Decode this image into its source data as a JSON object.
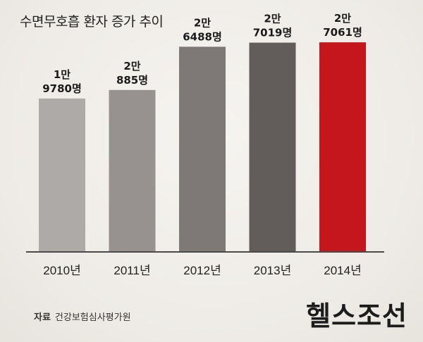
{
  "title": "수면무호흡 환자 증가 추이",
  "source": {
    "label": "자료",
    "text": "건강보험심사평가원"
  },
  "logo": "헬스조선",
  "chart_data": {
    "type": "bar",
    "title": "수면무호흡 환자 증가 추이",
    "categories": [
      "2010년",
      "2011년",
      "2012년",
      "2013년",
      "2014년"
    ],
    "values": [
      19780,
      20885,
      26488,
      27019,
      27061
    ],
    "value_labels": [
      [
        "1만",
        "9780명"
      ],
      [
        "2만",
        "885명"
      ],
      [
        "2만",
        "6488명"
      ],
      [
        "2만",
        "7019명"
      ],
      [
        "2만",
        "7061명"
      ]
    ],
    "colors": [
      "#aeaaa8",
      "#979290",
      "#7e7977",
      "#625c5b",
      "#c4161c"
    ],
    "xlabel": "",
    "ylabel": "",
    "grid": false,
    "legend": "none"
  }
}
